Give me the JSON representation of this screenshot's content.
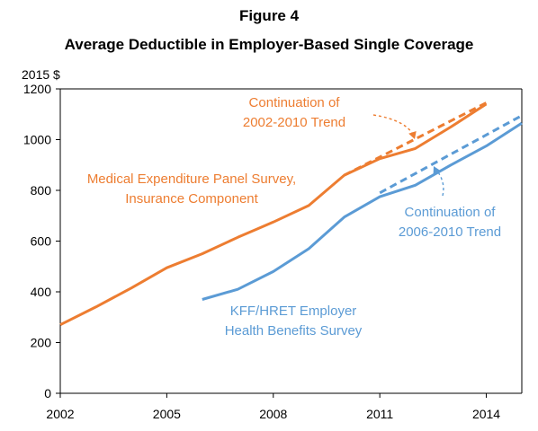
{
  "figure_label": "Figure 4",
  "chart_data": {
    "type": "line",
    "title": "Average Deductible in Employer-Based Single Coverage",
    "ylabel": "2015 $",
    "xlabel": "",
    "xlim": [
      2002,
      2015
    ],
    "ylim": [
      0,
      1200
    ],
    "x_ticks": [
      "2002",
      "2005",
      "2008",
      "2011",
      "2014"
    ],
    "y_ticks": [
      "0",
      "200",
      "400",
      "600",
      "800",
      "1000",
      "1200"
    ],
    "grid": false,
    "series": [
      {
        "name": "Medical Expenditure Panel Survey, Insurance Component",
        "color": "#ED7D31",
        "style": "solid",
        "x": [
          2002,
          2003,
          2004,
          2005,
          2006,
          2007,
          2008,
          2009,
          2010,
          2011,
          2012,
          2013,
          2014
        ],
        "y": [
          270,
          340,
          415,
          495,
          550,
          615,
          675,
          740,
          860,
          925,
          965,
          1050,
          1140
        ]
      },
      {
        "name": "KFF/HRET Employer Health Benefits Survey",
        "color": "#5B9BD5",
        "style": "solid",
        "x": [
          2006,
          2007,
          2008,
          2009,
          2010,
          2011,
          2012,
          2013,
          2014,
          2015
        ],
        "y": [
          370,
          410,
          480,
          570,
          695,
          775,
          820,
          900,
          975,
          1065
        ]
      },
      {
        "name": "Continuation of 2002-2010 Trend",
        "color": "#ED7D31",
        "style": "dashed",
        "x": [
          2010,
          2014
        ],
        "y": [
          860,
          1145
        ]
      },
      {
        "name": "Continuation of 2006-2010 Trend",
        "color": "#5B9BD5",
        "style": "dashed",
        "x": [
          2011,
          2015
        ],
        "y": [
          790,
          1095
        ]
      }
    ],
    "annotations": [
      {
        "id": "mepsLabel",
        "lines": [
          "Medical Expenditure Panel Survey,",
          "Insurance Component"
        ],
        "color": "#ED7D31"
      },
      {
        "id": "kffLabel",
        "lines": [
          "KFF/HRET Employer",
          "Health Benefits Survey"
        ],
        "color": "#5B9BD5"
      },
      {
        "id": "orangeTrendLabel",
        "lines": [
          "Continuation of",
          "2002-2010 Trend"
        ],
        "color": "#ED7D31"
      },
      {
        "id": "blueTrendLabel",
        "lines": [
          "Continuation of",
          "2006-2010 Trend"
        ],
        "color": "#5B9BD5"
      }
    ]
  }
}
